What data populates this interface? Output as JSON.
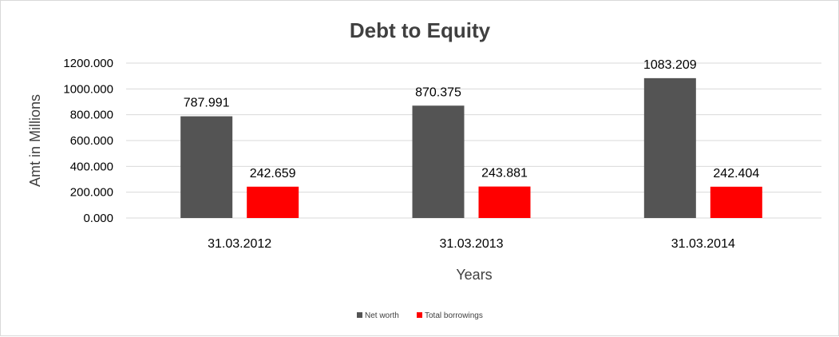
{
  "chart_data": {
    "type": "bar",
    "title": "Debt to Equity",
    "xlabel": "Years",
    "ylabel": "Amt in Millions",
    "categories": [
      "31.03.2012",
      "31.03.2013",
      "31.03.2014"
    ],
    "series": [
      {
        "name": "Net worth",
        "values": [
          787.991,
          870.375,
          1083.209
        ],
        "color": "#545454"
      },
      {
        "name": "Total borrowings",
        "values": [
          242.659,
          243.881,
          242.404
        ],
        "color": "#ff0000"
      }
    ],
    "data_labels": [
      [
        "787.991",
        "870.375",
        "1083.209"
      ],
      [
        "242.659",
        "243.881",
        "242.404"
      ]
    ],
    "yticks": [
      "0.000",
      "200.000",
      "400.000",
      "600.000",
      "800.000",
      "1000.000",
      "1200.000"
    ],
    "ylim": [
      0,
      1200
    ],
    "grid": true,
    "legend_position": "bottom"
  }
}
